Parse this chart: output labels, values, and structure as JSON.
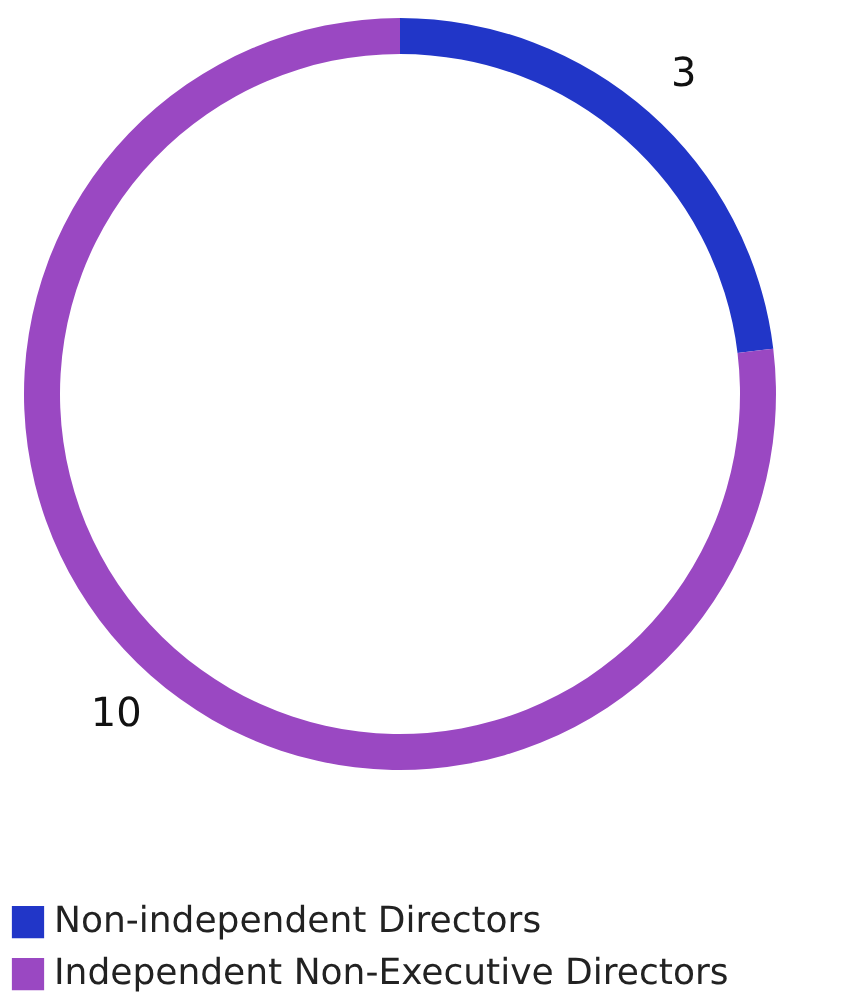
{
  "chart_data": {
    "type": "donut",
    "categories": [
      "Non-independent Directors",
      "Independent Non-Executive Directors"
    ],
    "values": [
      3,
      10
    ],
    "colors": [
      "#2136c8",
      "#9a48c2"
    ],
    "data_labels": true,
    "legend": "bottom left"
  }
}
